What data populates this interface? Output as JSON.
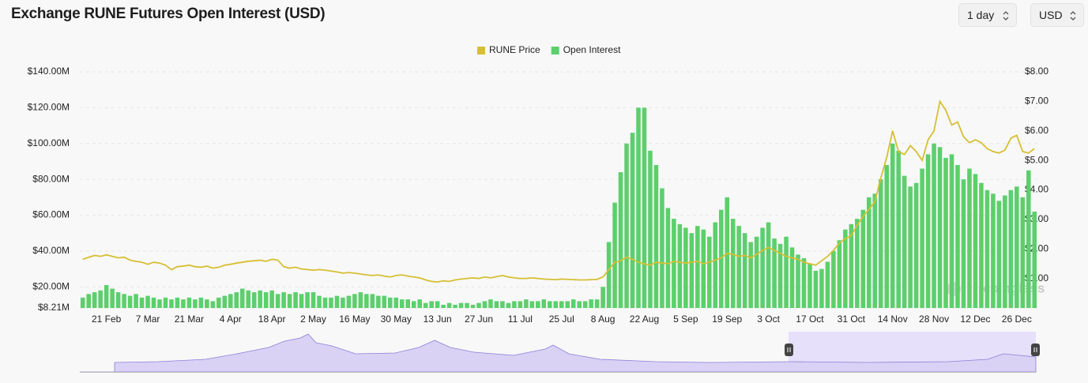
{
  "header": {
    "title": "Exchange RUNE Futures Open Interest (USD)",
    "interval": "1 day",
    "currency": "USD"
  },
  "watermark": "coinglass",
  "chart_data": {
    "type": "bar",
    "categories": [
      null,
      null,
      null,
      null,
      "21 Feb",
      null,
      null,
      null,
      null,
      null,
      null,
      "7 Mar",
      null,
      null,
      null,
      null,
      null,
      null,
      "21 Mar",
      null,
      null,
      null,
      null,
      null,
      null,
      "4 Apr",
      null,
      null,
      null,
      null,
      null,
      null,
      "18 Apr",
      null,
      null,
      null,
      null,
      null,
      null,
      "2 May",
      null,
      null,
      null,
      null,
      null,
      null,
      "16 May",
      null,
      null,
      null,
      null,
      null,
      null,
      "30 May",
      null,
      null,
      null,
      null,
      null,
      null,
      "13 Jun",
      null,
      null,
      null,
      null,
      null,
      null,
      "27 Jun",
      null,
      null,
      null,
      null,
      null,
      null,
      "11 Jul",
      null,
      null,
      null,
      null,
      null,
      null,
      "25 Jul",
      null,
      null,
      null,
      null,
      null,
      null,
      "8 Aug",
      null,
      null,
      null,
      null,
      null,
      null,
      "22 Aug",
      null,
      null,
      null,
      null,
      null,
      null,
      "5 Sep",
      null,
      null,
      null,
      null,
      null,
      null,
      "19 Sep",
      null,
      null,
      null,
      null,
      null,
      null,
      "3 Oct",
      null,
      null,
      null,
      null,
      null,
      null,
      "17 Oct",
      null,
      null,
      null,
      null,
      null,
      null,
      "31 Oct",
      null,
      null,
      null,
      null,
      null,
      null,
      "14 Nov",
      null,
      null,
      null,
      null,
      null,
      null,
      "28 Nov",
      null,
      null,
      null,
      null,
      null,
      null,
      "12 Dec",
      null,
      null,
      null,
      null,
      null,
      null,
      "26 Dec",
      null,
      null,
      null
    ],
    "series": [
      {
        "name": "Open Interest",
        "color": "#5ccf6c",
        "axis": "y",
        "type": "bar",
        "values": [
          14000000,
          16000000,
          17000000,
          18000000,
          21000000,
          19000000,
          17000000,
          16000000,
          15000000,
          16000000,
          14000000,
          15000000,
          14000000,
          13000000,
          14000000,
          13000000,
          14000000,
          13000000,
          14000000,
          13000000,
          14000000,
          13000000,
          12000000,
          14000000,
          15000000,
          16000000,
          17000000,
          19000000,
          18000000,
          17000000,
          18000000,
          17000000,
          18000000,
          16000000,
          17000000,
          16000000,
          17000000,
          16000000,
          17000000,
          17000000,
          15000000,
          14000000,
          14000000,
          15000000,
          14000000,
          15000000,
          16000000,
          17000000,
          16000000,
          16000000,
          15000000,
          15000000,
          14000000,
          14000000,
          13000000,
          13000000,
          12000000,
          13000000,
          11000000,
          12000000,
          12000000,
          10000000,
          11000000,
          10000000,
          11000000,
          11000000,
          10000000,
          11000000,
          12000000,
          13000000,
          12000000,
          12000000,
          11000000,
          12000000,
          12000000,
          13000000,
          12000000,
          12000000,
          13000000,
          12000000,
          12000000,
          12000000,
          12000000,
          13000000,
          12000000,
          12000000,
          13000000,
          13000000,
          20000000,
          45000000,
          67000000,
          84000000,
          100000000,
          106000000,
          120000000,
          120000000,
          96000000,
          88000000,
          75000000,
          64000000,
          58000000,
          55000000,
          53000000,
          50000000,
          54000000,
          52000000,
          48000000,
          56000000,
          63000000,
          70000000,
          58000000,
          54000000,
          50000000,
          45000000,
          48000000,
          53000000,
          56000000,
          47000000,
          44000000,
          48000000,
          42000000,
          38000000,
          36000000,
          33000000,
          29000000,
          30000000,
          34000000,
          40000000,
          46000000,
          52000000,
          55000000,
          58000000,
          63000000,
          70000000,
          72000000,
          80000000,
          88000000,
          100000000,
          96000000,
          82000000,
          76000000,
          78000000,
          86000000,
          94000000,
          100000000,
          98000000,
          92000000,
          94000000,
          88000000,
          80000000,
          86000000,
          83000000,
          78000000,
          74000000,
          72000000,
          68000000,
          71000000,
          74000000,
          76000000,
          70000000,
          85000000,
          62000000
        ]
      },
      {
        "name": "RUNE Price",
        "color": "#d6bf34",
        "axis": "y2",
        "type": "line",
        "values": [
          1.65,
          1.72,
          1.78,
          1.75,
          1.8,
          1.75,
          1.7,
          1.72,
          1.62,
          1.58,
          1.55,
          1.48,
          1.55,
          1.52,
          1.45,
          1.3,
          1.4,
          1.42,
          1.45,
          1.4,
          1.38,
          1.42,
          1.35,
          1.38,
          1.45,
          1.48,
          1.52,
          1.55,
          1.58,
          1.6,
          1.62,
          1.58,
          1.65,
          1.62,
          1.4,
          1.35,
          1.38,
          1.32,
          1.3,
          1.28,
          1.3,
          1.28,
          1.25,
          1.22,
          1.18,
          1.2,
          1.18,
          1.15,
          1.12,
          1.1,
          1.12,
          1.08,
          1.05,
          1.1,
          1.12,
          1.08,
          1.05,
          1.02,
          0.95,
          0.9,
          0.88,
          0.92,
          0.9,
          0.95,
          0.98,
          1.0,
          1.02,
          1.0,
          1.05,
          1.02,
          1.06,
          1.1,
          1.05,
          1.02,
          1.0,
          1.0,
          1.02,
          1.0,
          0.98,
          0.97,
          0.96,
          0.98,
          0.97,
          0.96,
          0.95,
          0.95,
          0.96,
          0.97,
          1.05,
          1.3,
          1.55,
          1.6,
          1.72,
          1.65,
          1.55,
          1.5,
          1.45,
          1.55,
          1.52,
          1.5,
          1.58,
          1.55,
          1.52,
          1.55,
          1.58,
          1.5,
          1.55,
          1.62,
          1.7,
          1.85,
          1.82,
          1.75,
          1.78,
          1.7,
          1.82,
          1.95,
          2.05,
          1.95,
          1.85,
          1.75,
          1.7,
          1.65,
          1.55,
          1.5,
          1.45,
          1.6,
          1.75,
          1.95,
          2.2,
          2.35,
          2.45,
          2.8,
          3.1,
          3.35,
          3.6,
          4.4,
          5.1,
          6.0,
          5.3,
          5.2,
          5.5,
          5.3,
          5.0,
          5.7,
          6.0,
          7.0,
          6.7,
          6.2,
          6.3,
          5.8,
          5.6,
          5.7,
          5.6,
          5.4,
          5.3,
          5.25,
          5.35,
          5.75,
          5.85,
          5.3,
          5.25,
          5.4
        ]
      }
    ],
    "ylim": [
      8210000,
      140000000
    ],
    "yticks": [
      {
        "value": 8210000,
        "label": "$8.21M"
      },
      {
        "value": 20000000,
        "label": "$20.00M"
      },
      {
        "value": 40000000,
        "label": "$40.00M"
      },
      {
        "value": 60000000,
        "label": "$60.00M"
      },
      {
        "value": 80000000,
        "label": "$80.00M"
      },
      {
        "value": 100000000,
        "label": "$100.00M"
      },
      {
        "value": 120000000,
        "label": "$120.00M"
      },
      {
        "value": 140000000,
        "label": "$140.00M"
      }
    ],
    "y2lim": [
      0,
      8
    ],
    "y2ticks": [
      {
        "value": 1,
        "label": "$1.00"
      },
      {
        "value": 2,
        "label": "$2.00"
      },
      {
        "value": 3,
        "label": "$3.00"
      },
      {
        "value": 4,
        "label": "$4.00"
      },
      {
        "value": 5,
        "label": "$5.00"
      },
      {
        "value": 6,
        "label": "$6.00"
      },
      {
        "value": 7,
        "label": "$7.00"
      },
      {
        "value": 8,
        "label": "$8.00"
      }
    ],
    "grid": true,
    "legend": "top"
  }
}
